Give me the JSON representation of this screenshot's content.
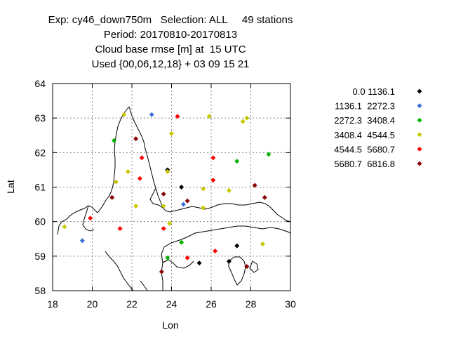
{
  "header": {
    "line1": "Exp: cy46_down750m   Selection: ALL     49 stations",
    "line2": "Period: 20170810-20170813",
    "line3": "Cloud base rmse [m] at  15 UTC",
    "line4": "Used {00,06,12,18} + 03 09 15 21"
  },
  "chart_data": {
    "type": "scatter",
    "xlabel": "Lon",
    "ylabel": "Lat",
    "xlim": [
      18,
      30
    ],
    "ylim": [
      58,
      64
    ],
    "xticks": [
      18,
      20,
      22,
      24,
      26,
      28,
      30
    ],
    "yticks": [
      58,
      59,
      60,
      61,
      62,
      63,
      64
    ],
    "grid": true,
    "legend_position": "right",
    "series": [
      {
        "name": "0.0 1136.1",
        "color": "#000000",
        "points": [
          [
            23.8,
            61.5
          ],
          [
            24.5,
            61.0
          ],
          [
            25.4,
            58.8
          ],
          [
            26.9,
            58.85
          ],
          [
            27.3,
            59.3
          ]
        ]
      },
      {
        "name": "1136.1  2272.3",
        "color": "#3a6fd8",
        "points": [
          [
            23.0,
            63.1
          ],
          [
            24.6,
            60.5
          ],
          [
            19.5,
            59.45
          ]
        ]
      },
      {
        "name": "2272.3  3408.4",
        "color": "#00b400",
        "points": [
          [
            21.1,
            62.35
          ],
          [
            27.3,
            61.75
          ],
          [
            28.9,
            61.95
          ],
          [
            24.5,
            59.4
          ],
          [
            23.8,
            58.95
          ]
        ]
      },
      {
        "name": "3408.4  4544.5",
        "color": "#c8c800",
        "points": [
          [
            21.6,
            63.1
          ],
          [
            24.0,
            62.55
          ],
          [
            25.9,
            63.05
          ],
          [
            27.6,
            62.9
          ],
          [
            27.8,
            63.0
          ],
          [
            21.8,
            61.45
          ],
          [
            23.8,
            61.45
          ],
          [
            21.2,
            61.15
          ],
          [
            22.2,
            60.45
          ],
          [
            23.6,
            60.45
          ],
          [
            25.6,
            60.95
          ],
          [
            26.9,
            60.9
          ],
          [
            25.6,
            60.4
          ],
          [
            23.9,
            59.95
          ],
          [
            18.6,
            59.85
          ],
          [
            28.6,
            59.35
          ]
        ]
      },
      {
        "name": "4544.5  5680.7",
        "color": "#ff0000",
        "points": [
          [
            24.3,
            63.05
          ],
          [
            22.5,
            61.85
          ],
          [
            26.1,
            61.85
          ],
          [
            22.4,
            61.25
          ],
          [
            26.1,
            61.2
          ],
          [
            19.9,
            60.1
          ],
          [
            21.4,
            59.8
          ],
          [
            23.6,
            59.8
          ],
          [
            24.8,
            58.95
          ],
          [
            26.2,
            59.15
          ]
        ]
      },
      {
        "name": "5680.7  6816.8",
        "color": "#8b0000",
        "points": [
          [
            22.2,
            62.4
          ],
          [
            23.6,
            60.8
          ],
          [
            21.0,
            60.7
          ],
          [
            24.8,
            60.6
          ],
          [
            28.2,
            61.05
          ],
          [
            28.7,
            60.7
          ],
          [
            23.5,
            58.55
          ],
          [
            27.8,
            58.7
          ]
        ]
      }
    ]
  }
}
